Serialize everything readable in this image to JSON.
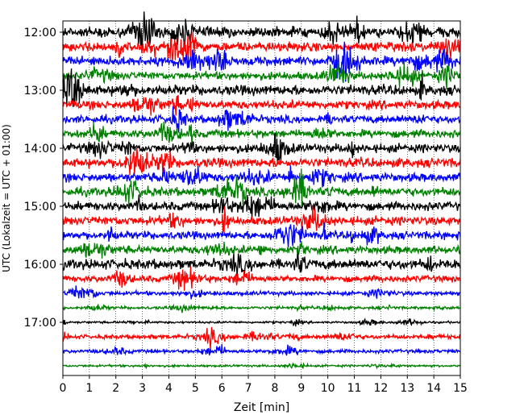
{
  "chart_data": {
    "type": "line",
    "chart_kind": "helicorder",
    "xlabel": "Zeit  [min]",
    "ylabel": "UTC (Lokalzeit = UTC + 01:00)",
    "xlim": [
      0,
      15
    ],
    "x_ticks": [
      "0",
      "1",
      "2",
      "3",
      "4",
      "5",
      "6",
      "7",
      "8",
      "9",
      "10",
      "11",
      "12",
      "13",
      "14",
      "15"
    ],
    "y_tick_labels": [
      "12:00",
      "13:00",
      "14:00",
      "15:00",
      "16:00",
      "17:00"
    ],
    "y_tick_trace_index": [
      0,
      4,
      8,
      12,
      16,
      20
    ],
    "grid": "vertical dotted",
    "trace_colors": [
      "#000000",
      "#ff0000",
      "#0000ff",
      "#008000"
    ],
    "traces": [
      {
        "start": "12:00",
        "color": "#000000",
        "amplitude": 0.28
      },
      {
        "start": "12:15",
        "color": "#ff0000",
        "amplitude": 0.26
      },
      {
        "start": "12:30",
        "color": "#0000ff",
        "amplitude": 0.26
      },
      {
        "start": "12:45",
        "color": "#008000",
        "amplitude": 0.22
      },
      {
        "start": "13:00",
        "color": "#000000",
        "amplitude": 0.28
      },
      {
        "start": "13:15",
        "color": "#ff0000",
        "amplitude": 0.24
      },
      {
        "start": "13:30",
        "color": "#0000ff",
        "amplitude": 0.22
      },
      {
        "start": "13:45",
        "color": "#008000",
        "amplitude": 0.22
      },
      {
        "start": "14:00",
        "color": "#000000",
        "amplitude": 0.24
      },
      {
        "start": "14:15",
        "color": "#ff0000",
        "amplitude": 0.26
      },
      {
        "start": "14:30",
        "color": "#0000ff",
        "amplitude": 0.24
      },
      {
        "start": "14:45",
        "color": "#008000",
        "amplitude": 0.24
      },
      {
        "start": "15:00",
        "color": "#000000",
        "amplitude": 0.24
      },
      {
        "start": "15:15",
        "color": "#ff0000",
        "amplitude": 0.24
      },
      {
        "start": "15:30",
        "color": "#0000ff",
        "amplitude": 0.22
      },
      {
        "start": "15:45",
        "color": "#008000",
        "amplitude": 0.22
      },
      {
        "start": "16:00",
        "color": "#000000",
        "amplitude": 0.28
      },
      {
        "start": "16:15",
        "color": "#ff0000",
        "amplitude": 0.18
      },
      {
        "start": "16:30",
        "color": "#0000ff",
        "amplitude": 0.12
      },
      {
        "start": "16:45",
        "color": "#008000",
        "amplitude": 0.08
      },
      {
        "start": "17:00",
        "color": "#000000",
        "amplitude": 0.06
      },
      {
        "start": "17:15",
        "color": "#ff0000",
        "amplitude": 0.12
      },
      {
        "start": "17:30",
        "color": "#0000ff",
        "amplitude": 0.1
      },
      {
        "start": "17:45",
        "color": "#008000",
        "amplitude": 0.06
      }
    ]
  }
}
